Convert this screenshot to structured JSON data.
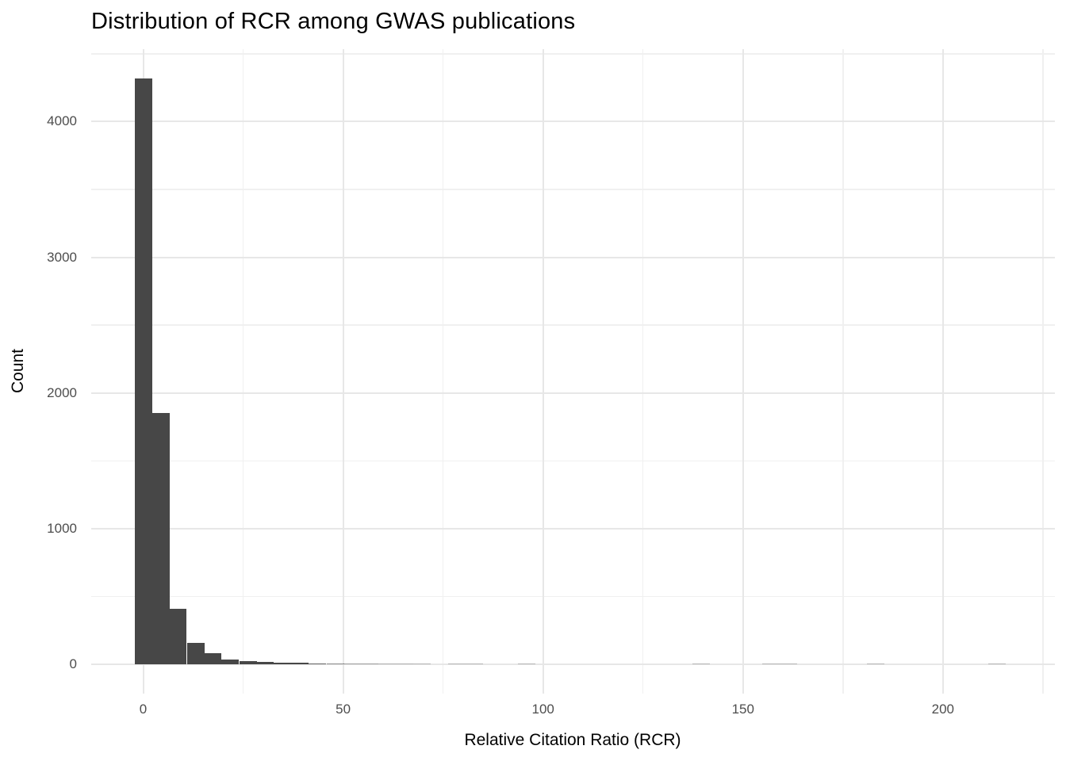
{
  "chart_data": {
    "type": "bar",
    "subtype": "histogram",
    "title": "Distribution of RCR among GWAS publications",
    "xlabel": "Relative Citation Ratio (RCR)",
    "ylabel": "Count",
    "x_ticks": [
      0,
      50,
      100,
      150,
      200
    ],
    "x_minor_gridlines": [
      25,
      75,
      125,
      175,
      225
    ],
    "y_ticks": [
      0,
      1000,
      2000,
      3000,
      4000
    ],
    "y_minor_gridlines": [
      500,
      1500,
      2500,
      3500,
      4500
    ],
    "xlim": [
      -13,
      228
    ],
    "ylim": [
      -216,
      4534
    ],
    "grid": "major+minor",
    "legend_position": "none",
    "binwidth": 4.36,
    "colors": {
      "bar_fill": "#474747",
      "grid_major": "#e7e7e7",
      "grid_minor": "#f0f0f0",
      "tick_label": "#4d4d4d",
      "title_text": "#000000",
      "background": "#ffffff"
    },
    "bins": [
      {
        "center": 0.0,
        "count": 4320
      },
      {
        "center": 4.4,
        "count": 1850
      },
      {
        "center": 8.7,
        "count": 410
      },
      {
        "center": 13.1,
        "count": 160
      },
      {
        "center": 17.4,
        "count": 80
      },
      {
        "center": 21.8,
        "count": 38
      },
      {
        "center": 26.2,
        "count": 26
      },
      {
        "center": 30.5,
        "count": 16
      },
      {
        "center": 34.9,
        "count": 12
      },
      {
        "center": 39.2,
        "count": 9
      },
      {
        "center": 43.6,
        "count": 7
      },
      {
        "center": 48.0,
        "count": 5
      },
      {
        "center": 52.3,
        "count": 4
      },
      {
        "center": 56.7,
        "count": 4
      },
      {
        "center": 61.0,
        "count": 3
      },
      {
        "center": 65.4,
        "count": 3
      },
      {
        "center": 69.8,
        "count": 2
      },
      {
        "center": 74.1,
        "count": 0
      },
      {
        "center": 78.5,
        "count": 1
      },
      {
        "center": 82.8,
        "count": 1
      },
      {
        "center": 87.2,
        "count": 0
      },
      {
        "center": 91.6,
        "count": 0
      },
      {
        "center": 95.9,
        "count": 1
      },
      {
        "center": 100.3,
        "count": 0
      },
      {
        "center": 104.6,
        "count": 0
      },
      {
        "center": 109.0,
        "count": 0
      },
      {
        "center": 113.4,
        "count": 0
      },
      {
        "center": 117.7,
        "count": 0
      },
      {
        "center": 122.1,
        "count": 0
      },
      {
        "center": 126.4,
        "count": 0
      },
      {
        "center": 130.8,
        "count": 0
      },
      {
        "center": 135.2,
        "count": 0
      },
      {
        "center": 139.5,
        "count": 1
      },
      {
        "center": 143.9,
        "count": 0
      },
      {
        "center": 148.2,
        "count": 0
      },
      {
        "center": 152.6,
        "count": 0
      },
      {
        "center": 157.0,
        "count": 1
      },
      {
        "center": 161.3,
        "count": 1
      },
      {
        "center": 165.7,
        "count": 0
      },
      {
        "center": 170.0,
        "count": 0
      },
      {
        "center": 174.4,
        "count": 0
      },
      {
        "center": 178.8,
        "count": 0
      },
      {
        "center": 183.1,
        "count": 1
      },
      {
        "center": 187.5,
        "count": 0
      },
      {
        "center": 191.8,
        "count": 0
      },
      {
        "center": 196.2,
        "count": 0
      },
      {
        "center": 200.6,
        "count": 0
      },
      {
        "center": 204.9,
        "count": 0
      },
      {
        "center": 209.3,
        "count": 0
      },
      {
        "center": 213.6,
        "count": 1
      }
    ]
  }
}
